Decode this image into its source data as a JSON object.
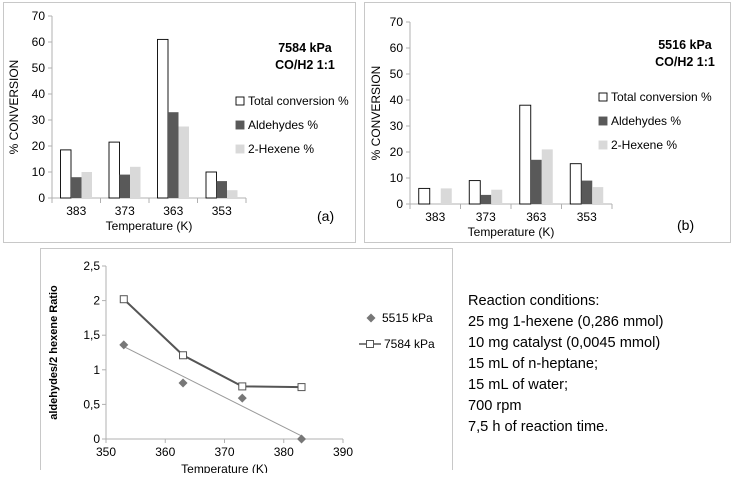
{
  "chart_data": [
    {
      "type": "bar",
      "id": "a",
      "title": "7584 kPa",
      "subtitle": "CO/H2 1:1",
      "panel_label": "(a)",
      "xlabel": "Temperature (K)",
      "ylabel": "% CONVERSION",
      "ylim": [
        0,
        70
      ],
      "yticks": [
        0,
        10,
        20,
        30,
        40,
        50,
        60,
        70
      ],
      "categories": [
        "383",
        "373",
        "363",
        "353"
      ],
      "series": [
        {
          "name": "Total conversion %",
          "values": [
            18.5,
            21.5,
            61,
            10
          ],
          "color": "#ffffff"
        },
        {
          "name": "Aldehydes %",
          "values": [
            8,
            9,
            33,
            6.5
          ],
          "color": "#595959"
        },
        {
          "name": "2-Hexene %",
          "values": [
            10,
            12,
            27.5,
            3
          ],
          "color": "#d9d9d9"
        }
      ],
      "legend": "right"
    },
    {
      "type": "bar",
      "id": "b",
      "title": "5516 kPa",
      "subtitle": "CO/H2 1:1",
      "panel_label": "(b)",
      "xlabel": "Temperature (K)",
      "ylabel": "% CONVERSION",
      "ylim": [
        0,
        70
      ],
      "yticks": [
        0,
        10,
        20,
        30,
        40,
        50,
        60,
        70
      ],
      "categories": [
        "383",
        "373",
        "363",
        "353"
      ],
      "series": [
        {
          "name": "Total conversion %",
          "values": [
            6,
            9,
            38,
            15.5
          ],
          "color": "#ffffff"
        },
        {
          "name": "Aldehydes %",
          "values": [
            0,
            3.5,
            17,
            9
          ],
          "color": "#595959"
        },
        {
          "name": "2-Hexene %",
          "values": [
            6,
            5.5,
            21,
            6.5
          ],
          "color": "#d9d9d9"
        }
      ],
      "legend": "right"
    },
    {
      "type": "scatter",
      "id": "c",
      "xlabel": "Temperature (K)",
      "ylabel": "aldehydes/2 hexene Ratio",
      "xlim": [
        350,
        390
      ],
      "ylim": [
        0,
        2.5
      ],
      "xticks": [
        "350",
        "360",
        "370",
        "380",
        "390"
      ],
      "yticks": [
        "0",
        "0,5",
        "1",
        "1,5",
        "2",
        "2,5"
      ],
      "series": [
        {
          "name": "5515 kPa",
          "marker": "diamond",
          "x": [
            353,
            363,
            373,
            383
          ],
          "y": [
            1.36,
            0.81,
            0.59,
            0.0
          ],
          "trendline": true,
          "color": "#777777"
        },
        {
          "name": "7584 kPa",
          "marker": "square",
          "x": [
            353,
            363,
            373,
            383
          ],
          "y": [
            2.02,
            1.21,
            0.76,
            0.75
          ],
          "connected": true,
          "color": "#555555"
        }
      ],
      "legend": "right"
    }
  ],
  "reaction_conditions": {
    "heading": "Reaction conditions:",
    "lines": [
      "25 mg 1-hexene (0,286 mmol)",
      "10 mg catalyst (0,0045 mmol)",
      "15 mL of n-heptane;",
      "15 mL of water;",
      "700 rpm",
      "7,5 h of reaction time."
    ]
  }
}
